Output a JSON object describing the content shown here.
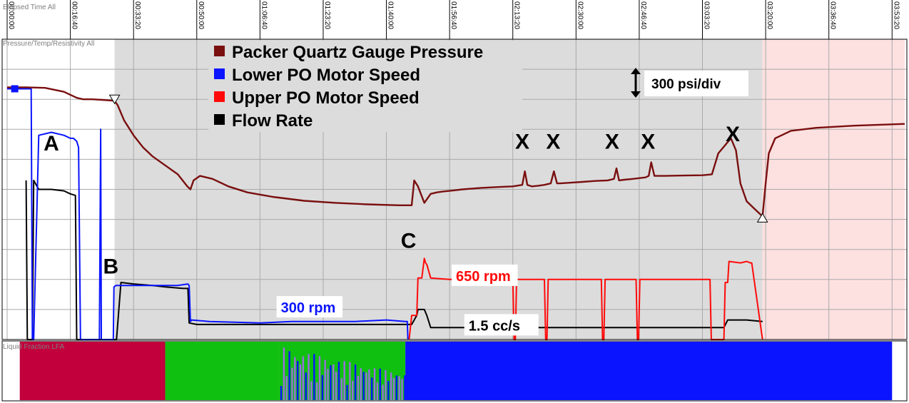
{
  "chart_data": {
    "type": "line",
    "time_axis": {
      "title": "Elapsed Time All",
      "tick_labels": [
        "00:00:00",
        "00:16:40",
        "00:33:20",
        "00:50:00",
        "01:06:40",
        "01:23:20",
        "01:40:00",
        "01:56:40",
        "02:13:20",
        "02:30:00",
        "02:46:40",
        "03:03:20",
        "03:20:00",
        "03:36:40",
        "03:53:20"
      ],
      "tick_seconds": [
        0,
        1000,
        2000,
        3000,
        4000,
        5000,
        6000,
        7000,
        8000,
        9000,
        10000,
        11000,
        12000,
        13000,
        14000
      ],
      "xlim_seconds": [
        0,
        14200
      ]
    },
    "main_track": {
      "title": "Pressure/Temp/Resistivity All",
      "ylim": [
        0,
        10
      ],
      "grid": true,
      "legend_position": "top-center",
      "scale_annotation": "300 psi/div"
    },
    "shaded_regions": [
      {
        "x": [
          1700,
          11950
        ],
        "color": "#dcdcdc"
      },
      {
        "x": [
          11950,
          14200
        ],
        "color": "#fde0e0"
      }
    ],
    "series": [
      {
        "name": "Packer Quartz Gauge Pressure",
        "color": "#7a0f0f",
        "x": [
          0,
          300,
          600,
          900,
          1000,
          1100,
          1200,
          1350,
          1500,
          1650,
          1700,
          1750,
          1850,
          2000,
          2150,
          2300,
          2500,
          2700,
          2850,
          2900,
          2950,
          3050,
          3250,
          3500,
          3800,
          4200,
          4700,
          5200,
          5700,
          6200,
          6400,
          6440,
          6500,
          6600,
          6700,
          6800,
          6900,
          7000,
          7200,
          7500,
          7800,
          8000,
          8150,
          8190,
          8230,
          8300,
          8400,
          8500,
          8600,
          8650,
          8700,
          8750,
          8900,
          9100,
          9300,
          9500,
          9600,
          9640,
          9680,
          9760,
          9900,
          10100,
          10150,
          10190,
          10240,
          10400,
          10700,
          11000,
          11150,
          11250,
          11450,
          11530,
          11600,
          11700,
          11850,
          11950,
          12000,
          12050,
          12150,
          12400,
          12800,
          13400,
          14200
        ],
        "y": [
          8.4,
          8.4,
          8.38,
          8.25,
          8.15,
          8.05,
          8.0,
          8.0,
          7.98,
          7.96,
          7.95,
          7.8,
          7.3,
          6.8,
          6.4,
          6.1,
          5.8,
          5.5,
          5.1,
          5.0,
          5.3,
          5.45,
          5.35,
          5.1,
          4.9,
          4.75,
          4.62,
          4.55,
          4.5,
          4.47,
          4.47,
          5.3,
          5.1,
          4.55,
          4.85,
          4.9,
          4.93,
          4.95,
          5.0,
          5.05,
          5.08,
          5.1,
          5.15,
          5.6,
          5.15,
          5.1,
          5.12,
          5.15,
          5.2,
          5.6,
          5.2,
          5.2,
          5.22,
          5.25,
          5.28,
          5.3,
          5.35,
          5.7,
          5.3,
          5.32,
          5.35,
          5.4,
          5.45,
          5.9,
          5.45,
          5.45,
          5.46,
          5.47,
          5.5,
          6.2,
          6.7,
          6.3,
          5.2,
          4.6,
          4.3,
          4.1,
          5.2,
          6.2,
          6.7,
          6.95,
          7.05,
          7.12,
          7.18
        ]
      },
      {
        "name": "Lower PO Motor Speed",
        "color": "#0a14ff",
        "x": [
          0,
          240,
          260,
          380,
          400,
          420,
          500,
          700,
          900,
          1000,
          1050,
          1100,
          1130,
          1160,
          1200,
          1460,
          1480,
          1490,
          1520,
          1680,
          1690,
          1720,
          1730,
          2500,
          2700,
          2860,
          2880,
          2900,
          2920,
          3200,
          4000,
          4500,
          5000,
          5500,
          6000,
          6300,
          6330,
          6340
        ],
        "y": [
          8.35,
          8.35,
          8.35,
          8.35,
          0,
          0,
          6.8,
          6.9,
          6.8,
          6.7,
          6.7,
          6.6,
          6.4,
          0,
          0,
          0,
          7.0,
          0,
          0,
          0,
          1.75,
          1.8,
          1.8,
          1.8,
          1.8,
          1.85,
          1.8,
          0.6,
          0.65,
          0.6,
          0.55,
          0.6,
          0.6,
          0.6,
          0.65,
          0.6,
          0.6,
          0
        ]
      },
      {
        "name": "Upper PO Motor Speed",
        "color": "#ff0a0a",
        "x": [
          6360,
          6400,
          6480,
          6500,
          6560,
          6600,
          6620,
          6640,
          6700,
          7000,
          7900,
          8000,
          8020,
          8040,
          8060,
          8500,
          8520,
          8540,
          8560,
          9400,
          9420,
          9440,
          9460,
          9950,
          9970,
          9990,
          10010,
          11120,
          11140,
          11340,
          11360,
          11400,
          11420,
          11600,
          11700,
          11760,
          11780,
          11950
        ],
        "y": [
          0,
          0.8,
          0.8,
          2.05,
          2.05,
          2.7,
          2.55,
          2.5,
          2.05,
          2.0,
          2.0,
          2.05,
          0,
          0,
          2.0,
          2.0,
          0,
          0,
          2.0,
          2.0,
          0,
          0,
          2.0,
          2.0,
          0,
          0,
          2.0,
          2.0,
          0,
          0,
          1.9,
          1.9,
          2.6,
          2.55,
          2.6,
          2.55,
          2.55,
          0
        ]
      },
      {
        "name": "Flow Rate",
        "color": "#000000",
        "x": [
          300,
          320,
          400,
          420,
          500,
          700,
          900,
          1000,
          1080,
          1100,
          1700,
          1730,
          1800,
          2000,
          2300,
          2500,
          2790,
          2860,
          2880,
          3000,
          4000,
          5000,
          6000,
          6360,
          6400,
          6480,
          6500,
          6520,
          6600,
          6640,
          6700,
          7000,
          8000,
          9000,
          10000,
          11100,
          11340,
          11400,
          11500,
          11700,
          11950
        ],
        "y": [
          5.3,
          0,
          0,
          5.3,
          5.0,
          5.0,
          4.95,
          4.85,
          4.8,
          0,
          0,
          0,
          1.9,
          1.85,
          1.8,
          1.75,
          1.7,
          1.7,
          0.55,
          0.5,
          0.5,
          0.5,
          0.5,
          0.5,
          0.5,
          0.8,
          1.0,
          1.0,
          1.0,
          0.8,
          0.4,
          0.4,
          0.4,
          0.4,
          0.4,
          0.4,
          0.4,
          0.65,
          0.65,
          0.65,
          0.6
        ]
      }
    ],
    "annotations": [
      {
        "text": "A",
        "x": 700,
        "y": 6.3,
        "color": "#000000"
      },
      {
        "text": "B",
        "x": 1640,
        "y": 2.2,
        "color": "#000000"
      },
      {
        "text": "C",
        "x": 6350,
        "y": 3.05,
        "color": "#000000"
      },
      {
        "text": "X",
        "x": 8150,
        "y": 6.35,
        "color": "#000000"
      },
      {
        "text": "X",
        "x": 8640,
        "y": 6.35,
        "color": "#000000"
      },
      {
        "text": "X",
        "x": 9570,
        "y": 6.35,
        "color": "#000000"
      },
      {
        "text": "X",
        "x": 10140,
        "y": 6.35,
        "color": "#000000"
      },
      {
        "text": "X",
        "x": 11480,
        "y": 6.6,
        "color": "#000000"
      },
      {
        "text": "300 rpm",
        "x": 4330,
        "y": 0.9,
        "color": "#0a14ff"
      },
      {
        "text": "650 rpm",
        "x": 7100,
        "y": 1.95,
        "color": "#ff0a0a"
      },
      {
        "text": "1.5 cc/s",
        "x": 7300,
        "y": 0.3,
        "color": "#000000"
      }
    ],
    "markers": [
      {
        "shape": "inverted-triangle",
        "x": 1700,
        "y": 7.95
      },
      {
        "shape": "triangle",
        "x": 11950,
        "y": 4.1
      }
    ],
    "lfa_track": {
      "title": "Liquid Fraction LFA",
      "segments": [
        {
          "x": [
            200,
            2500
          ],
          "color": "#c1003c"
        },
        {
          "x": [
            2500,
            4300
          ],
          "color": "#10c010"
        },
        {
          "x": [
            4300,
            6300
          ],
          "color": "#10c010",
          "mixed": true
        },
        {
          "x": [
            6300,
            14000
          ],
          "color": "#0a14ff"
        }
      ]
    }
  }
}
